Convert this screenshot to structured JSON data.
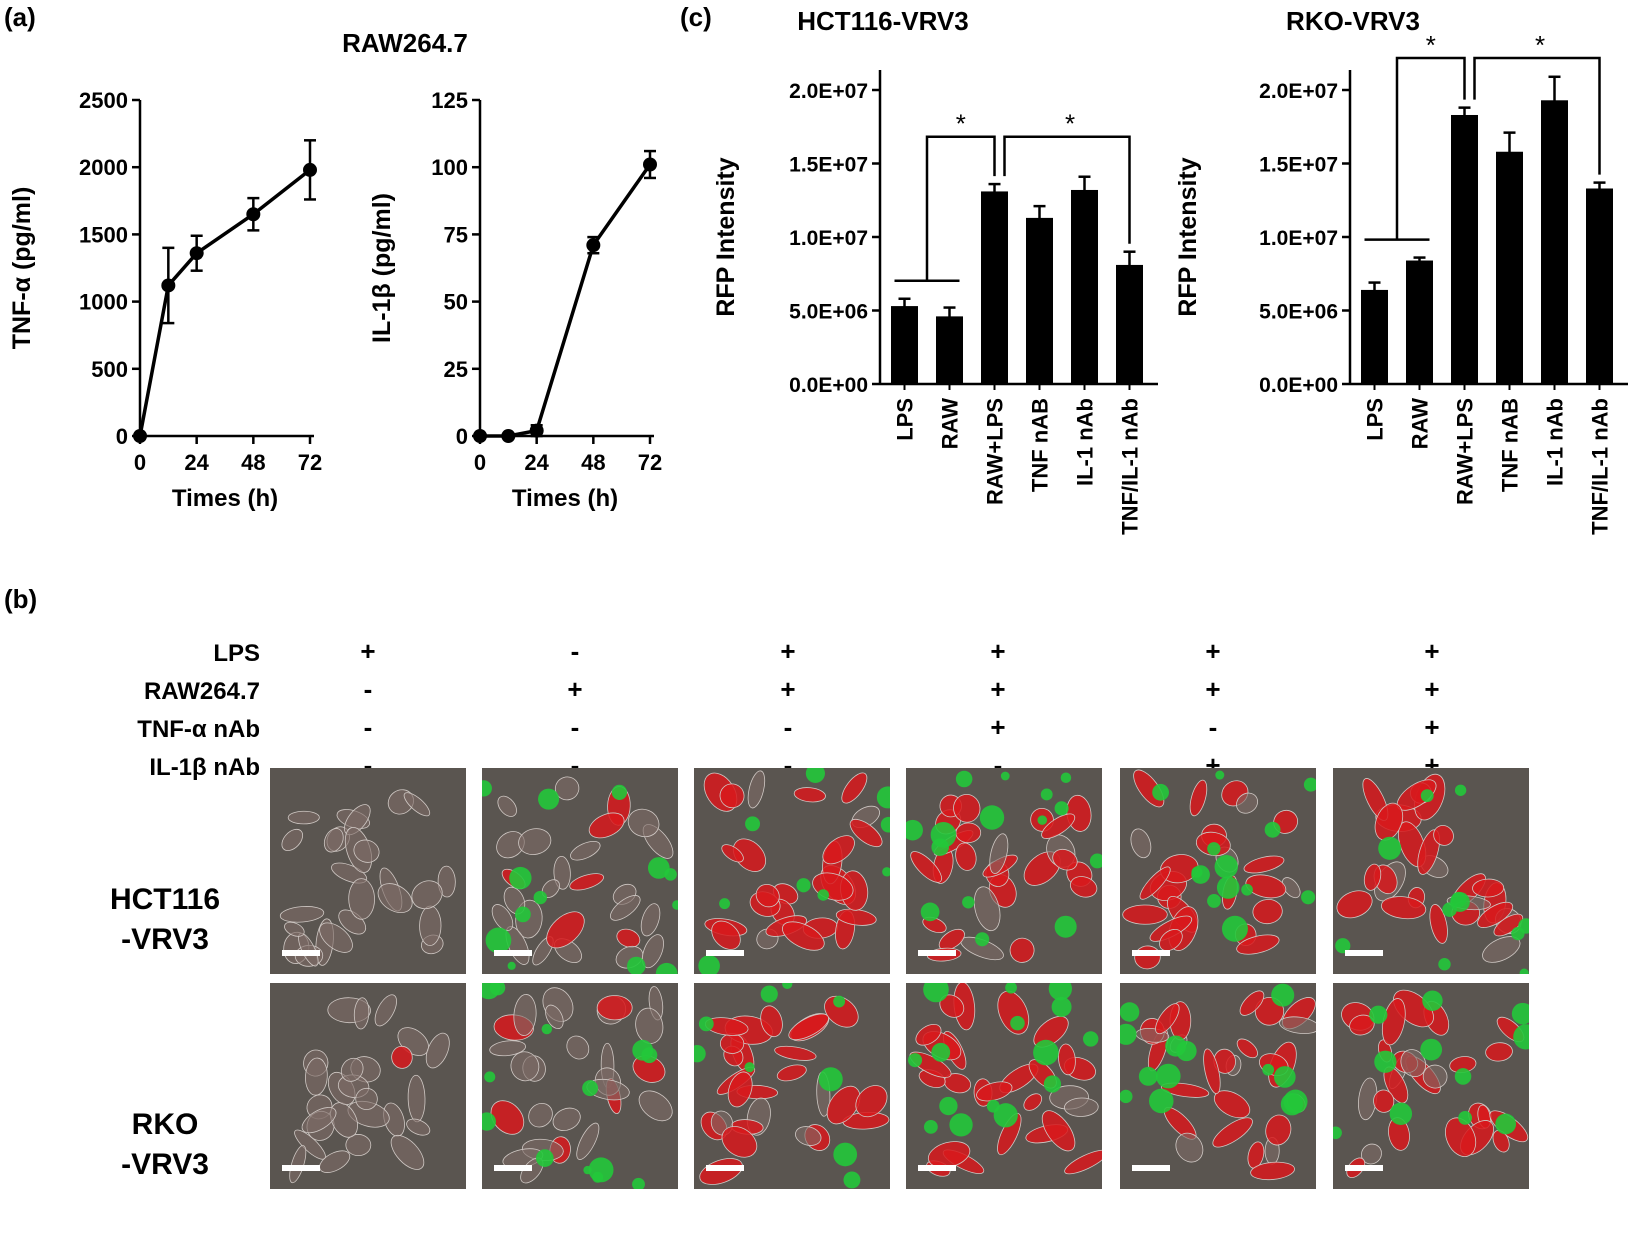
{
  "panel_a": {
    "letter": "(a)",
    "title": "RAW264.7",
    "charts": [
      {
        "type": "line",
        "ylabel": "TNF-α (pg/ml)",
        "xlabel": "Times (h)",
        "x_ticks": [
          "0",
          "24",
          "48",
          "72"
        ],
        "y_ticks": [
          "0",
          "500",
          "1000",
          "1500",
          "2000",
          "2500"
        ],
        "xlim": [
          0,
          72
        ],
        "ylim": [
          0,
          2500
        ],
        "series": [
          {
            "x": [
              0,
              12,
              24,
              48,
              72
            ],
            "y": [
              0,
              1120,
              1360,
              1650,
              1980
            ],
            "err": [
              0,
              280,
              130,
              120,
              220
            ]
          }
        ]
      },
      {
        "type": "line",
        "ylabel": "IL-1β (pg/ml)",
        "xlabel": "Times (h)",
        "x_ticks": [
          "0",
          "24",
          "48",
          "72"
        ],
        "y_ticks": [
          "0",
          "25",
          "50",
          "75",
          "100",
          "125"
        ],
        "xlim": [
          0,
          72
        ],
        "ylim": [
          0,
          125
        ],
        "series": [
          {
            "x": [
              0,
              12,
              24,
              48,
              72
            ],
            "y": [
              0,
              0,
              2,
              71,
              101
            ],
            "err": [
              0,
              0,
              2,
              3,
              5
            ]
          }
        ]
      }
    ]
  },
  "panel_c": {
    "letter": "(c)",
    "charts": [
      {
        "type": "bar",
        "title": "HCT116-VRV3",
        "ylabel": "RFP Intensity",
        "y_ticks": [
          "0.0E+00",
          "5.0E+06",
          "1.0E+07",
          "1.5E+07",
          "2.0E+07"
        ],
        "ylim": [
          0,
          20000000
        ],
        "categories": [
          "LPS",
          "RAW",
          "RAW+LPS",
          "TNF nAB",
          "IL-1 nAb",
          "TNF/IL-1 nAb"
        ],
        "values": [
          5300000,
          4600000,
          13100000,
          11300000,
          13200000,
          8100000
        ],
        "errors": [
          500000,
          600000,
          500000,
          800000,
          900000,
          900000
        ],
        "significance": [
          "*",
          "*"
        ]
      },
      {
        "type": "bar",
        "title": "RKO-VRV3",
        "ylabel": "RFP Intensity",
        "y_ticks": [
          "0.0E+00",
          "5.0E+06",
          "1.0E+07",
          "1.5E+07",
          "2.0E+07"
        ],
        "ylim": [
          0,
          20000000
        ],
        "categories": [
          "LPS",
          "RAW",
          "RAW+LPS",
          "TNF nAB",
          "IL-1 nAb",
          "TNF/IL-1 nAb"
        ],
        "values": [
          6400000,
          8400000,
          18300000,
          15800000,
          19300000,
          13300000
        ],
        "errors": [
          500000,
          200000,
          500000,
          1300000,
          1600000,
          400000
        ],
        "significance": [
          "*",
          "*"
        ]
      }
    ]
  },
  "panel_b": {
    "letter": "(b)",
    "conditions": [
      {
        "label": "LPS",
        "values": [
          "+",
          "-",
          "+",
          "+",
          "+",
          "+"
        ]
      },
      {
        "label": "RAW264.7",
        "values": [
          "-",
          "+",
          "+",
          "+",
          "+",
          "+"
        ]
      },
      {
        "label": "TNF-α nAb",
        "values": [
          "-",
          "-",
          "-",
          "+",
          "-",
          "+"
        ]
      },
      {
        "label": "IL-1β nAb",
        "values": [
          "-",
          "-",
          "-",
          "-",
          "+",
          "+"
        ]
      }
    ],
    "rows": [
      {
        "line1": "HCT116",
        "line2": "-VRV3"
      },
      {
        "line1": "RKO",
        "line2": "-VRV3"
      }
    ],
    "colors": {
      "background": "#5a5550",
      "red": "#d8191c",
      "green": "#22c83a"
    }
  }
}
